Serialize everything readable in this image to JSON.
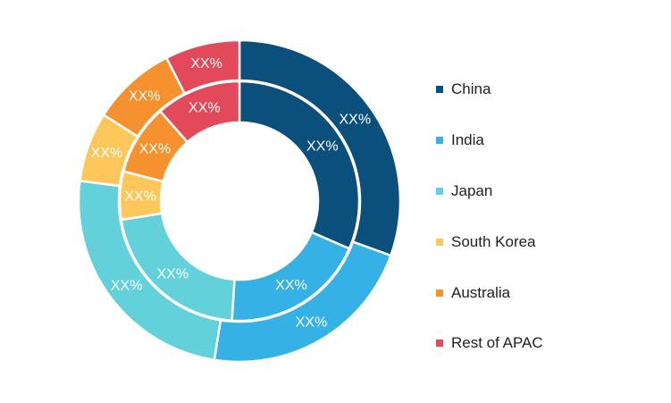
{
  "chart_data": {
    "type": "pie",
    "variant": "nested-donut",
    "categories": [
      "China",
      "India",
      "Japan",
      "South Korea",
      "Australia",
      "Rest of APAC"
    ],
    "colors": [
      "#0b4f7c",
      "#35b1e5",
      "#62d1d9",
      "#fdc75c",
      "#f5922f",
      "#e24a5b"
    ],
    "series": [
      {
        "ring": "outer",
        "values": [
          30.5,
          22.0,
          24.5,
          7.0,
          8.5,
          7.5
        ],
        "labels": [
          "XX%",
          "XX%",
          "XX%",
          "XX%",
          "XX%",
          "XX%"
        ]
      },
      {
        "ring": "inner",
        "values": [
          31.5,
          19.5,
          21.5,
          6.5,
          9.5,
          11.5
        ],
        "labels": [
          "XX%",
          "XX%",
          "XX%",
          "XX%",
          "XX%",
          "XX%"
        ]
      }
    ],
    "legend": {
      "position": "right",
      "items": [
        "China",
        "India",
        "Japan",
        "South Korea",
        "Australia",
        "Rest of APAC"
      ]
    }
  }
}
